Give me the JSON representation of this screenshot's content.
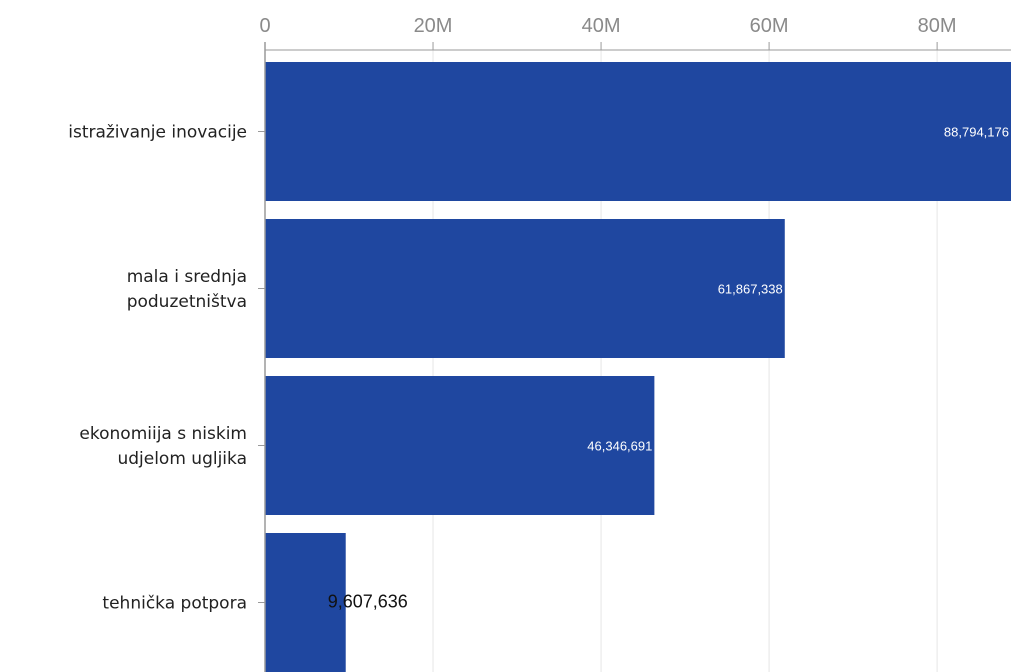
{
  "chart_data": {
    "type": "bar",
    "orientation": "horizontal",
    "categories": [
      [
        "istraživanje inovacije"
      ],
      [
        "mala i srednja",
        "poduzetništva"
      ],
      [
        "ekonomiija s niskim",
        "udjelom ugljika"
      ],
      [
        "tehnička potpora"
      ]
    ],
    "values": [
      88794176,
      61867338,
      46346691,
      9607636
    ],
    "data_labels": [
      "88,794,176",
      "61,867,338",
      "46,346,691",
      "9,607,636"
    ],
    "x_ticks": [
      0,
      20000000,
      40000000,
      60000000,
      80000000
    ],
    "x_tick_labels": [
      "0",
      "20M",
      "40M",
      "60M",
      "80M"
    ],
    "xlim": [
      0,
      88794176
    ],
    "axis_position": "top",
    "grid": true,
    "title": "",
    "xlabel": "",
    "ylabel": "",
    "colors": {
      "bar": "#1f47a0",
      "label_inside": "#ffffff",
      "label_outside": "#111111",
      "grid": "#e6e6e6",
      "axis": "#9a9a9a"
    }
  }
}
